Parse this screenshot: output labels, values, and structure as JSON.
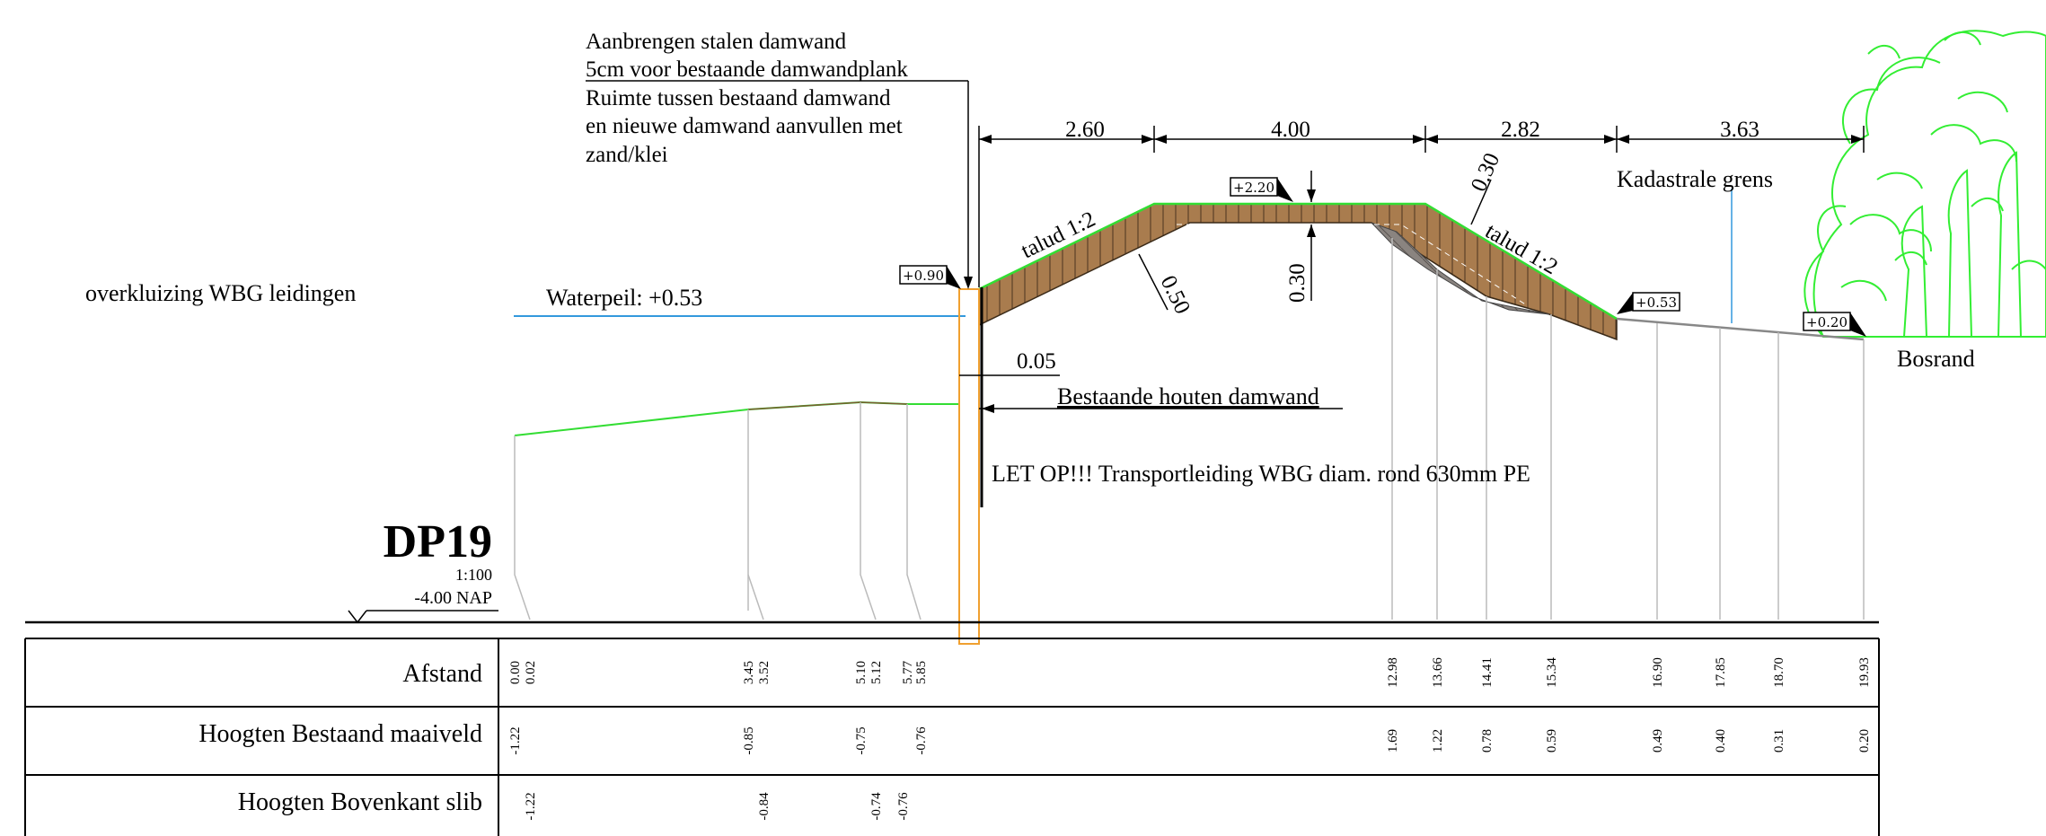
{
  "drawing": {
    "section_id": "DP19",
    "scale": "1:100",
    "datum": "-4.00  NAP",
    "left_title": "overkluizing WBG leidingen",
    "water_level": "Waterpeil: +0.53",
    "note_lines": [
      "Aanbrengen stalen damwand",
      "5cm voor bestaande damwandplank",
      "Ruimte tussen bestaand damwand",
      "en nieuwe damwand aanvullen met",
      "zand/klei"
    ],
    "dimensions": [
      "2.60",
      "4.00",
      "2.82",
      "3.63"
    ],
    "gap_dim": "0.05",
    "thickness_left": "0.50",
    "thickness_center": "0.30",
    "thickness_right": "0.30",
    "slope_left": "talud 1:2",
    "slope_right": "talud 1:2",
    "level_tags": [
      "+0.90",
      "+2.20",
      "+0.53",
      "+0.20"
    ],
    "cadastral": "Kadastrale grens",
    "existing_wall": "Bestaande houten damwand",
    "warning": "LET OP!!!  Transportleiding WBG diam. rond 630mm PE",
    "forest_edge": "Bosrand",
    "colors": {
      "ground": "#33dd33",
      "water": "#3399dd",
      "fill_brown": "#a97c4e",
      "sheet_pile": "#f0a030",
      "tree": "#33ee33"
    }
  },
  "table": {
    "rows": [
      {
        "label": "Afstand",
        "values": [
          "0.00",
          "0.02",
          "3.45",
          "3.52",
          "5.10",
          "5.12",
          "5.77",
          "5.85",
          "12.98",
          "13.66",
          "14.41",
          "15.34",
          "16.90",
          "17.85",
          "18.70",
          "19.93"
        ]
      },
      {
        "label": "Hoogten Bestaand maaiveld",
        "values": [
          "-1.22",
          "-0.85",
          "-0.75",
          "-0.76",
          "1.69",
          "1.22",
          "0.78",
          "0.59",
          "0.49",
          "0.40",
          "0.31",
          "0.20"
        ]
      },
      {
        "label": "Hoogten Bovenkant slib",
        "values": [
          "-1.22",
          "-0.84",
          "-0.74",
          "-0.76"
        ]
      }
    ]
  }
}
